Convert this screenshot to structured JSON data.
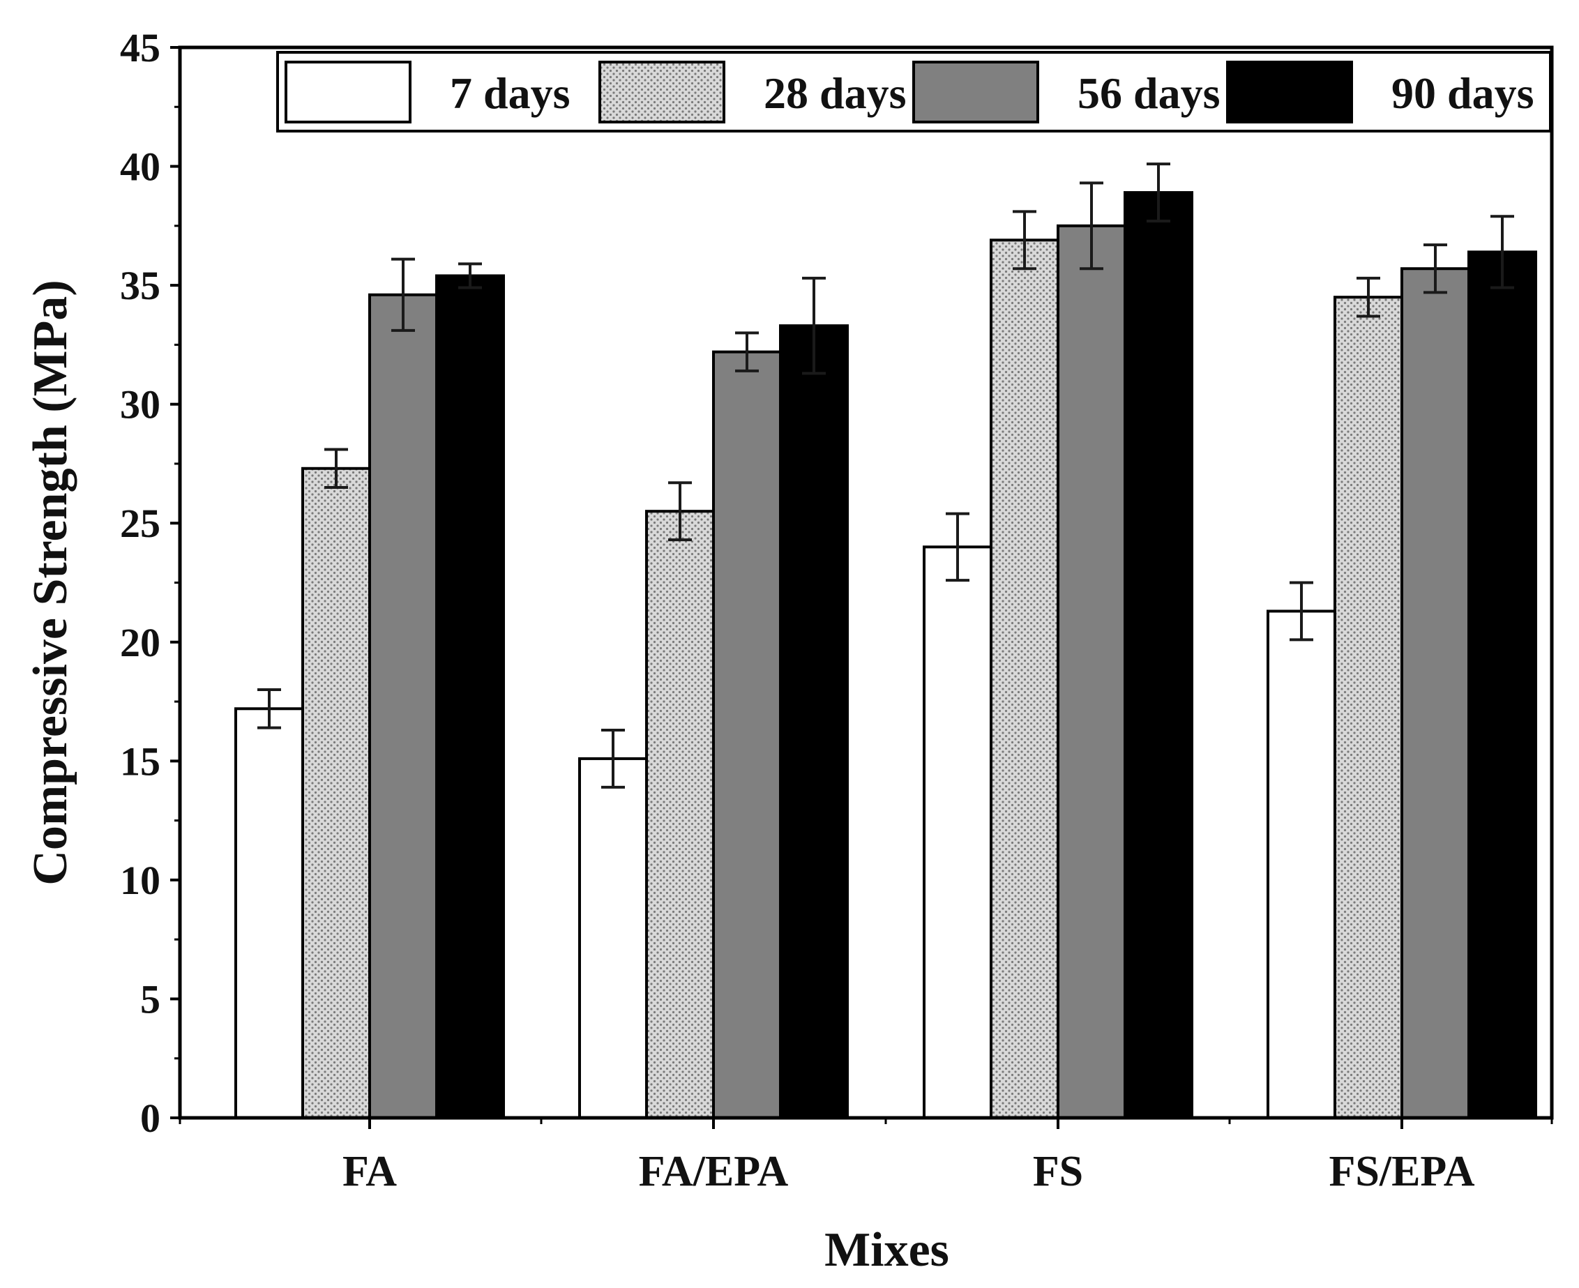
{
  "chart_data": {
    "type": "bar",
    "title": "",
    "xlabel": "Mixes",
    "ylabel": "Compressive Strength (MPa)",
    "ylim": [
      0,
      45
    ],
    "yticks": [
      0,
      5,
      10,
      15,
      20,
      25,
      30,
      35,
      40,
      45
    ],
    "categories": [
      "FA",
      "FA/EPA",
      "FS",
      "FS/EPA"
    ],
    "series": [
      {
        "name": "7 days",
        "values": [
          17.2,
          15.1,
          24.0,
          21.3
        ],
        "errors": [
          0.8,
          1.2,
          1.4,
          1.2
        ],
        "pattern": "white"
      },
      {
        "name": "28 days",
        "values": [
          27.3,
          25.5,
          36.9,
          34.5
        ],
        "errors": [
          0.8,
          1.2,
          1.2,
          0.8
        ],
        "pattern": "dotted"
      },
      {
        "name": "56 days",
        "values": [
          34.6,
          32.2,
          37.5,
          35.7
        ],
        "errors": [
          1.5,
          0.8,
          1.8,
          1.0
        ],
        "pattern": "gray"
      },
      {
        "name": "90 days",
        "values": [
          35.4,
          33.3,
          38.9,
          36.4
        ],
        "errors": [
          0.5,
          2.0,
          1.2,
          1.5
        ],
        "pattern": "black"
      }
    ],
    "legend_position": "top"
  }
}
